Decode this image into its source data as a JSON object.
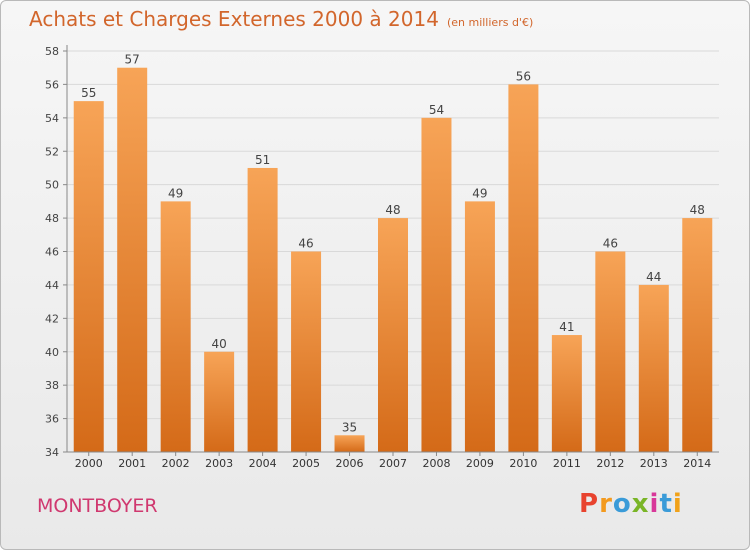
{
  "chart_data": {
    "type": "bar",
    "title": "Achats et Charges Externes 2000 à 2014",
    "subtitle": "(en milliers d'€)",
    "categories": [
      "2000",
      "2001",
      "2002",
      "2003",
      "2004",
      "2005",
      "2006",
      "2007",
      "2008",
      "2009",
      "2010",
      "2011",
      "2012",
      "2013",
      "2014"
    ],
    "values": [
      55,
      57,
      49,
      40,
      51,
      46,
      35,
      48,
      54,
      49,
      56,
      41,
      46,
      44,
      48
    ],
    "xlabel": "",
    "ylabel": "",
    "ylim": [
      34,
      58
    ],
    "yticks": [
      34,
      36,
      38,
      40,
      42,
      44,
      46,
      48,
      50,
      52,
      54,
      56,
      58
    ],
    "grid": true,
    "legend": "none",
    "bar_color": "#f0892f"
  },
  "footer": {
    "place": "MONTBOYER",
    "brand": "Proxiti",
    "brand_colors": [
      "#e8432e",
      "#f39a1e",
      "#3a9bd8",
      "#7ab527",
      "#d8389a",
      "#3a9bd8",
      "#f0a21a"
    ]
  }
}
